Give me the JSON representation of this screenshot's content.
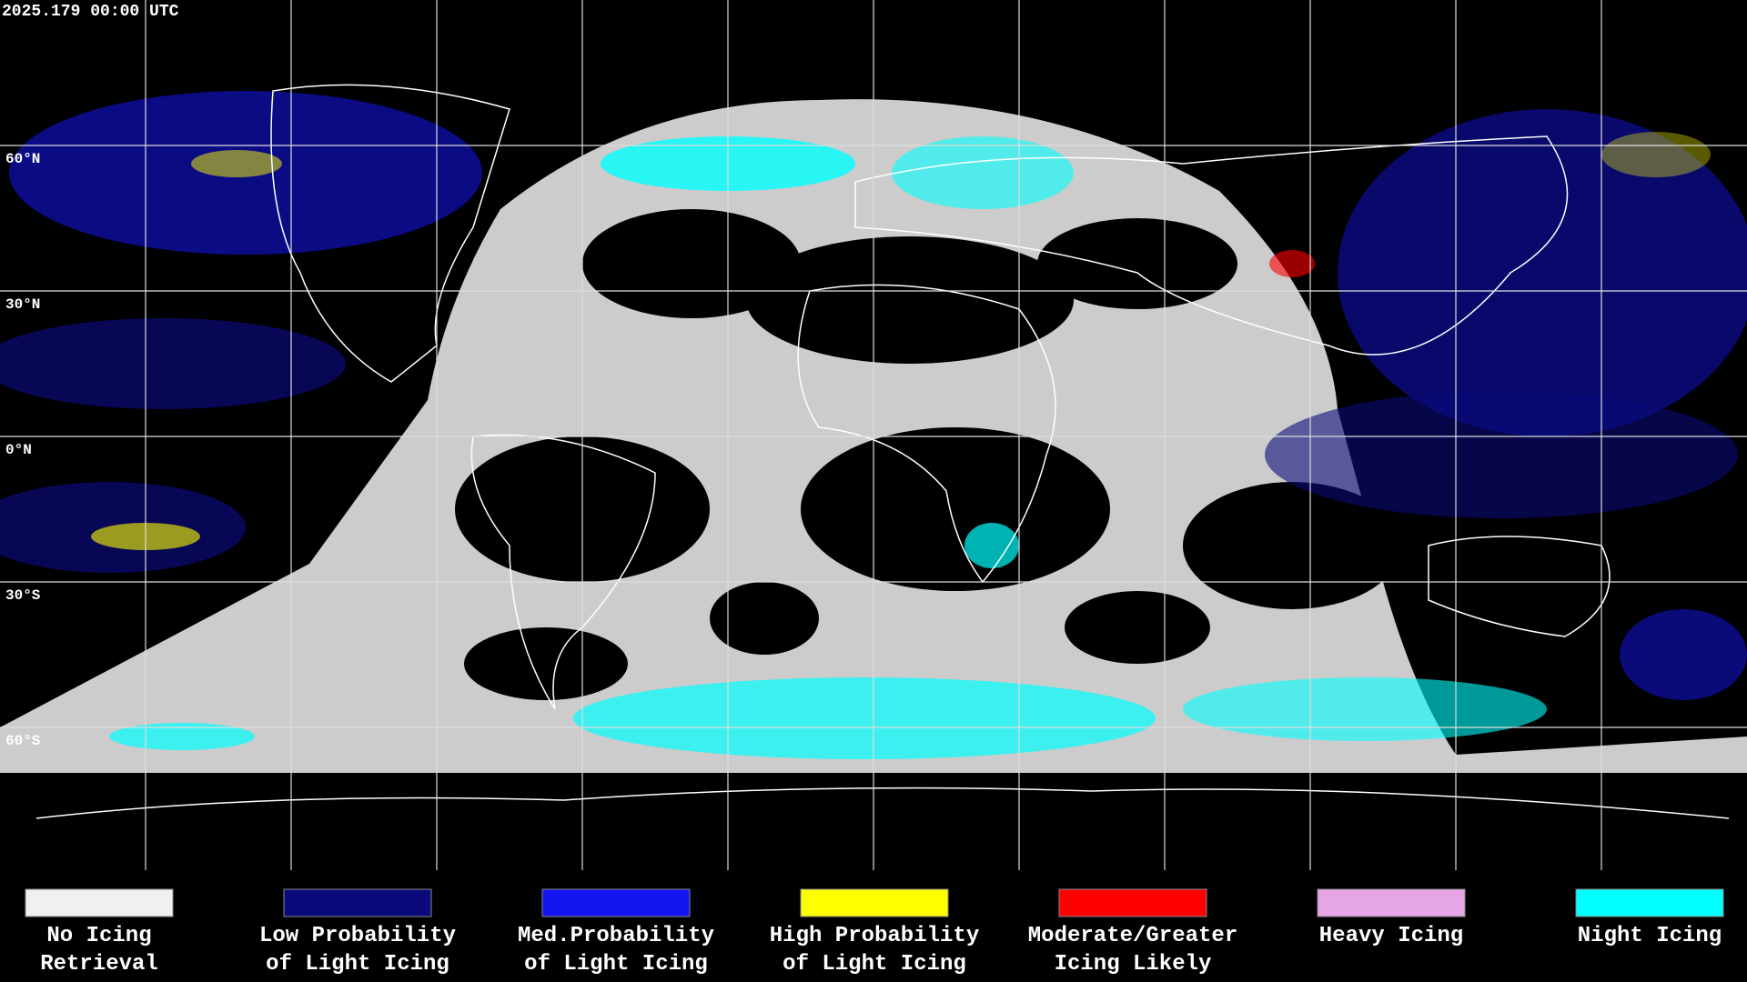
{
  "timestamp": "2025.179 00:00 UTC",
  "latitude_labels": [
    "60°N",
    "30°N",
    "0°N",
    "30°S",
    "60°S"
  ],
  "legend": [
    {
      "color": "#f0f0f0",
      "label_lines": [
        "No Icing",
        "Retrieval"
      ]
    },
    {
      "color": "#0a0a7a",
      "label_lines": [
        "Low Probability",
        "of Light Icing"
      ]
    },
    {
      "color": "#1414f0",
      "label_lines": [
        "Med.Probability",
        "of Light Icing"
      ]
    },
    {
      "color": "#ffff00",
      "label_lines": [
        "High Probability",
        "of Light Icing"
      ]
    },
    {
      "color": "#ff0000",
      "label_lines": [
        "Moderate/Greater",
        "Icing Likely"
      ]
    },
    {
      "color": "#e6a6e6",
      "label_lines": [
        "Heavy Icing"
      ]
    },
    {
      "color": "#00ffff",
      "label_lines": [
        "Night Icing"
      ]
    }
  ]
}
